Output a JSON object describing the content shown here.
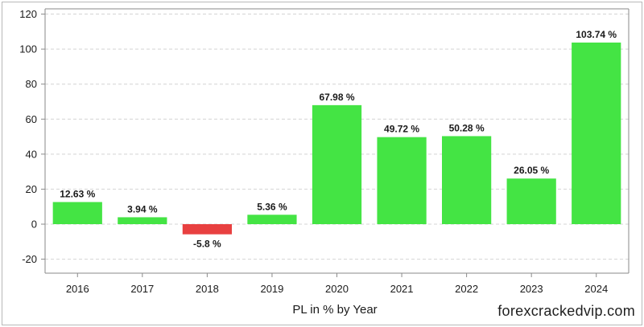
{
  "chart_data": {
    "type": "bar",
    "categories": [
      "2016",
      "2017",
      "2018",
      "2019",
      "2020",
      "2021",
      "2022",
      "2023",
      "2024"
    ],
    "values": [
      12.63,
      3.94,
      -5.8,
      5.36,
      67.98,
      49.72,
      50.28,
      26.05,
      103.74
    ],
    "data_labels": [
      "12.63 %",
      "3.94 %",
      "-5.8 %",
      "5.36 %",
      "67.98 %",
      "49.72 %",
      "50.28 %",
      "26.05 %",
      "103.74 %"
    ],
    "title": "",
    "xlabel": "PL in % by Year",
    "ylabel": "",
    "ylim": [
      -28,
      123
    ],
    "yticks": [
      -20,
      0,
      20,
      40,
      60,
      80,
      100,
      120
    ],
    "grid": true,
    "colors": {
      "positive": "#44e444",
      "negative": "#e84040"
    }
  },
  "watermark": "forexcrackedvip.com"
}
